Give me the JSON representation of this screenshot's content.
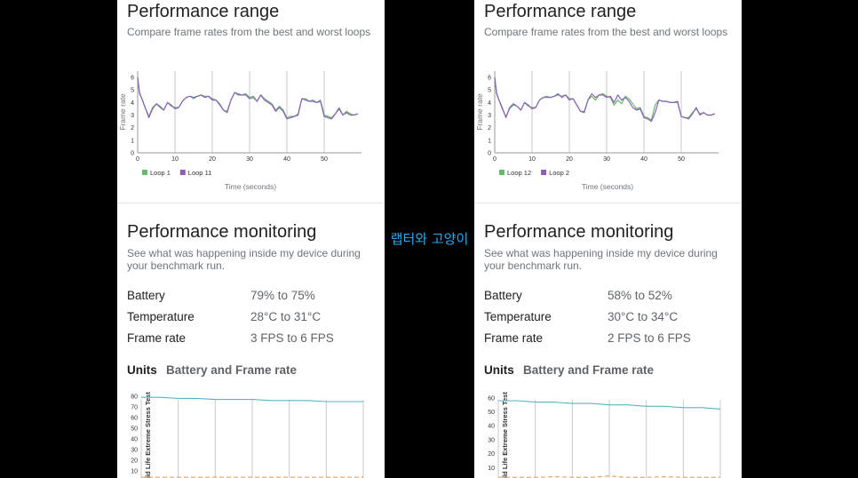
{
  "caption": "랩터와 고양이",
  "panels": [
    {
      "performance_range": {
        "title": "Performance range",
        "subtitle": "Compare frame rates from the best and worst loops"
      },
      "performance_monitoring": {
        "title": "Performance monitoring",
        "subtitle": "See what was happening inside my device during your benchmark run.",
        "rows": [
          {
            "label": "Battery",
            "value": "79% to 75%"
          },
          {
            "label": "Temperature",
            "value": "28°C to 31°C"
          },
          {
            "label": "Frame rate",
            "value": "3 FPS to 6 FPS"
          }
        ]
      },
      "units": {
        "label": "Units",
        "value": "Battery and Frame rate"
      }
    },
    {
      "performance_range": {
        "title": "Performance range",
        "subtitle": "Compare frame rates from the best and worst loops"
      },
      "performance_monitoring": {
        "title": "Performance monitoring",
        "subtitle": "See what was happening inside my device during your benchmark run.",
        "rows": [
          {
            "label": "Battery",
            "value": "58% to 52%"
          },
          {
            "label": "Temperature",
            "value": "30°C to 34°C"
          },
          {
            "label": "Frame rate",
            "value": "2 FPS to 6 FPS"
          }
        ]
      },
      "units": {
        "label": "Units",
        "value": "Battery and Frame rate"
      }
    }
  ],
  "chart_data": [
    {
      "type": "line",
      "xlabel": "Time (seconds)",
      "ylabel": "Frame rate",
      "xlim": [
        0,
        60
      ],
      "ylim": [
        0,
        6.5
      ],
      "xticks": [
        0,
        10,
        20,
        30,
        40,
        50
      ],
      "yticks": [
        0,
        1,
        2,
        3,
        4,
        5,
        6
      ],
      "legend_position": "bottom-left",
      "series": [
        {
          "name": "Loop 1",
          "color": "#66bb6a",
          "x": [
            0,
            0.5,
            1,
            2,
            3,
            4,
            5,
            6,
            7,
            8,
            9,
            10,
            11,
            12,
            13,
            14,
            15,
            16,
            17,
            18,
            19,
            20,
            21,
            22,
            23,
            24,
            25,
            26,
            27,
            28,
            29,
            30,
            31,
            32,
            33,
            34,
            35,
            36,
            37,
            38,
            39,
            40,
            41,
            42,
            43,
            44,
            45,
            46,
            47,
            48,
            49,
            50,
            51,
            52,
            53,
            54,
            55,
            56,
            57,
            58,
            59
          ],
          "y": [
            6.0,
            4.8,
            4.4,
            3.6,
            2.9,
            3.6,
            3.9,
            3.6,
            3.4,
            4.0,
            3.7,
            3.6,
            3.6,
            4.1,
            4.4,
            4.5,
            4.3,
            4.5,
            4.6,
            4.5,
            4.5,
            4.3,
            4.2,
            3.9,
            3.4,
            3.3,
            4.2,
            4.8,
            4.7,
            4.6,
            4.7,
            4.4,
            4.5,
            4.1,
            4.6,
            4.3,
            4.1,
            3.9,
            3.4,
            3.7,
            3.4,
            2.8,
            2.9,
            2.9,
            3.1,
            4.3,
            4.3,
            4.1,
            4.2,
            4.0,
            4.2,
            3.0,
            2.9,
            2.8,
            3.1,
            3.6,
            3.0,
            3.3,
            3.1,
            3.0,
            3.1
          ]
        },
        {
          "name": "Loop 11",
          "color": "#8e5fb8",
          "x": [
            0,
            0.5,
            1,
            2,
            3,
            4,
            5,
            6,
            7,
            8,
            9,
            10,
            11,
            12,
            13,
            14,
            15,
            16,
            17,
            18,
            19,
            20,
            21,
            22,
            23,
            24,
            25,
            26,
            27,
            28,
            29,
            30,
            31,
            32,
            33,
            34,
            35,
            36,
            37,
            38,
            39,
            40,
            41,
            42,
            43,
            44,
            45,
            46,
            47,
            48,
            49,
            50,
            51,
            52,
            53,
            54,
            55,
            56,
            57,
            58,
            59
          ],
          "y": [
            6.0,
            4.7,
            4.4,
            3.6,
            2.8,
            3.5,
            3.9,
            3.7,
            3.4,
            4.0,
            3.8,
            3.5,
            3.6,
            4.1,
            4.4,
            4.5,
            4.4,
            4.5,
            4.6,
            4.4,
            4.5,
            4.2,
            4.2,
            3.8,
            3.4,
            3.2,
            4.2,
            4.8,
            4.6,
            4.6,
            4.6,
            4.3,
            4.4,
            4.1,
            4.6,
            4.2,
            4.0,
            3.8,
            3.3,
            3.6,
            3.3,
            2.7,
            2.8,
            2.9,
            3.0,
            4.3,
            4.2,
            4.1,
            4.1,
            4.0,
            4.1,
            2.9,
            2.8,
            2.7,
            3.1,
            3.5,
            3.0,
            3.2,
            3.0,
            3.0,
            3.1
          ]
        }
      ]
    },
    {
      "type": "line",
      "xlabel": "Time (seconds)",
      "ylabel": "Frame rate",
      "xlim": [
        0,
        60
      ],
      "ylim": [
        0,
        6.5
      ],
      "xticks": [
        0,
        10,
        20,
        30,
        40,
        50
      ],
      "yticks": [
        0,
        1,
        2,
        3,
        4,
        5,
        6
      ],
      "legend_position": "bottom-left",
      "series": [
        {
          "name": "Loop 12",
          "color": "#66bb6a",
          "x": [
            0,
            0.5,
            1,
            2,
            3,
            4,
            5,
            6,
            7,
            8,
            9,
            10,
            11,
            12,
            13,
            14,
            15,
            16,
            17,
            18,
            19,
            20,
            21,
            22,
            23,
            24,
            25,
            26,
            27,
            28,
            29,
            30,
            31,
            32,
            33,
            34,
            35,
            36,
            37,
            38,
            39,
            40,
            41,
            42,
            43,
            44,
            45,
            46,
            47,
            48,
            49,
            50,
            51,
            52,
            53,
            54,
            55,
            56,
            57,
            58,
            59
          ],
          "y": [
            6.0,
            4.8,
            4.3,
            3.5,
            2.9,
            3.5,
            3.8,
            3.7,
            3.4,
            4.0,
            3.7,
            3.6,
            3.6,
            4.2,
            4.4,
            4.5,
            4.4,
            4.5,
            4.6,
            4.5,
            4.6,
            4.3,
            4.3,
            3.8,
            3.3,
            3.3,
            4.2,
            4.5,
            4.2,
            4.6,
            4.7,
            4.5,
            4.4,
            3.8,
            4.2,
            3.9,
            4.5,
            4.3,
            3.9,
            3.5,
            3.6,
            2.9,
            2.8,
            2.6,
            3.8,
            4.2,
            4.1,
            4.1,
            4.0,
            4.0,
            4.0,
            2.9,
            2.8,
            2.8,
            3.2,
            3.5,
            3.1,
            3.2,
            3.0,
            3.0,
            3.1
          ]
        },
        {
          "name": "Loop 2",
          "color": "#8e5fb8",
          "x": [
            0,
            0.5,
            1,
            2,
            3,
            4,
            5,
            6,
            7,
            8,
            9,
            10,
            11,
            12,
            13,
            14,
            15,
            16,
            17,
            18,
            19,
            20,
            21,
            22,
            23,
            24,
            25,
            26,
            27,
            28,
            29,
            30,
            31,
            32,
            33,
            34,
            35,
            36,
            37,
            38,
            39,
            40,
            41,
            42,
            43,
            44,
            45,
            46,
            47,
            48,
            49,
            50,
            51,
            52,
            53,
            54,
            55,
            56,
            57,
            58,
            59
          ],
          "y": [
            6.0,
            4.7,
            4.3,
            3.6,
            2.8,
            3.6,
            3.9,
            3.7,
            3.4,
            4.0,
            3.8,
            3.5,
            3.6,
            4.2,
            4.4,
            4.4,
            4.4,
            4.5,
            4.7,
            4.4,
            4.6,
            4.2,
            4.3,
            3.8,
            3.3,
            3.2,
            4.2,
            4.7,
            4.4,
            4.6,
            4.6,
            4.4,
            4.5,
            4.0,
            4.6,
            4.2,
            4.4,
            4.1,
            3.6,
            3.4,
            3.5,
            2.8,
            2.7,
            2.5,
            3.2,
            4.2,
            4.1,
            4.1,
            4.0,
            4.0,
            4.1,
            2.9,
            2.8,
            2.7,
            3.1,
            3.6,
            3.0,
            3.2,
            3.0,
            3.0,
            3.1
          ]
        }
      ]
    },
    {
      "type": "line",
      "ylabel": "Wild Life Extreme Stress Test",
      "ylim": [
        0,
        85
      ],
      "yticks": [
        10,
        20,
        30,
        40,
        50,
        60,
        70,
        80
      ],
      "xlim": [
        0,
        12
      ],
      "series": [
        {
          "name": "Battery",
          "color": "#5cb3c2",
          "x": [
            0,
            1,
            2,
            3,
            4,
            5,
            6,
            7,
            8,
            9,
            10,
            11,
            12
          ],
          "y": [
            79,
            79,
            78,
            78,
            77,
            77,
            77,
            76,
            76,
            76,
            75,
            75,
            75
          ]
        },
        {
          "name": "Frame rate",
          "color": "#f0a04b",
          "x": [
            0,
            1,
            2,
            3,
            4,
            5,
            6,
            7,
            8,
            9,
            10,
            11,
            12
          ],
          "y": [
            4,
            4,
            4,
            4,
            4,
            4,
            4,
            4,
            4,
            4,
            4,
            4,
            4
          ]
        }
      ]
    },
    {
      "type": "line",
      "ylabel": "Wild Life Extreme Stress Test",
      "ylim": [
        0,
        65
      ],
      "yticks": [
        10,
        20,
        30,
        40,
        50,
        60
      ],
      "xlim": [
        0,
        12
      ],
      "series": [
        {
          "name": "Battery",
          "color": "#5cb3c2",
          "x": [
            0,
            1,
            2,
            3,
            4,
            5,
            6,
            7,
            8,
            9,
            10,
            11,
            12
          ],
          "y": [
            58,
            58,
            57,
            57,
            56,
            56,
            55,
            55,
            54,
            54,
            53,
            53,
            52
          ]
        },
        {
          "name": "Frame rate",
          "color": "#f0a04b",
          "x": [
            0,
            1,
            2,
            3,
            4,
            5,
            6,
            7,
            8,
            9,
            10,
            11,
            12
          ],
          "y": [
            3,
            3,
            3,
            3.5,
            3,
            3,
            4,
            3,
            3,
            3.5,
            3,
            3,
            3
          ]
        }
      ]
    }
  ]
}
